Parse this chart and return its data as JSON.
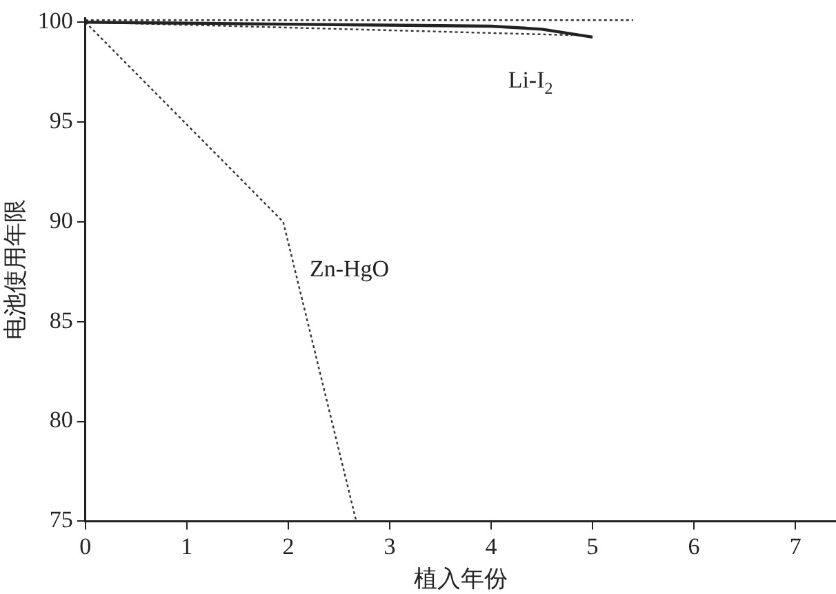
{
  "chart_data": {
    "type": "line",
    "xlabel": "植入年份",
    "ylabel": "电池使用年限",
    "xlim": [
      0,
      7.4
    ],
    "xticks": [
      0,
      1,
      2,
      3,
      4,
      5,
      6,
      7
    ],
    "ylim": [
      75,
      100.2
    ],
    "yticks": [
      75,
      80,
      85,
      90,
      95,
      100
    ],
    "grid": false,
    "legend": false,
    "marker": "none",
    "series": [
      {
        "name": "Li-I$_{2}$",
        "color": "#222222",
        "line_style": "solid",
        "x": [
          0,
          1,
          2,
          3,
          4,
          4.5,
          5
        ],
        "values": [
          100,
          99.95,
          99.9,
          99.85,
          99.8,
          99.65,
          99.25
        ]
      },
      {
        "color": "#333333",
        "line_style": "dotted",
        "x": [
          0,
          5.4
        ],
        "values": [
          100.1,
          100.1
        ]
      },
      {
        "color": "#333333",
        "line_style": "dotted",
        "x": [
          0,
          4.8
        ],
        "values": [
          100,
          99.35
        ]
      },
      {
        "name": "Zn-HgO",
        "color": "#333333",
        "line_style": "dotted",
        "x": [
          0,
          1.95,
          2.67
        ],
        "values": [
          100,
          90,
          75
        ]
      }
    ]
  }
}
